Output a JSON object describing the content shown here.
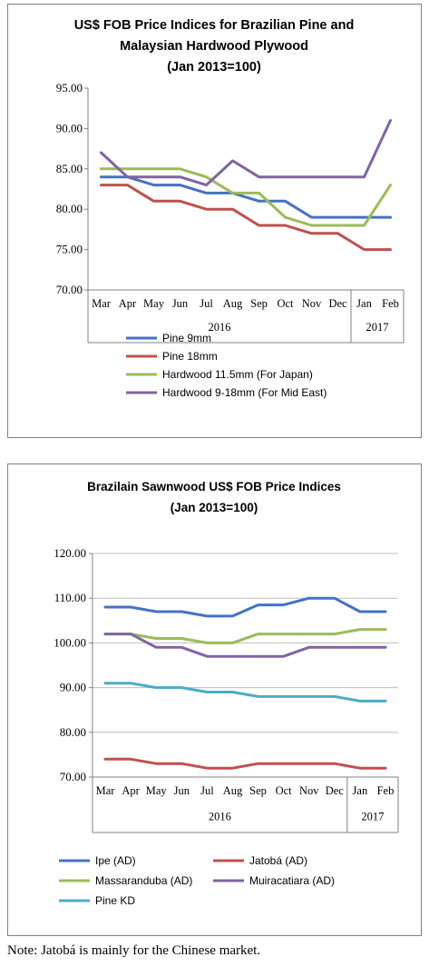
{
  "colors": {
    "blue": "#4472c4",
    "red": "#c0504d",
    "green": "#9bbb59",
    "purple": "#8064a2",
    "teal": "#4bacc6"
  },
  "chart_data": [
    {
      "type": "line",
      "title": [
        "US$ FOB Price Indices for Brazilian Pine and",
        "Malaysian Hardwood Plywood",
        "(Jan 2013=100)"
      ],
      "categories": [
        "Mar",
        "Apr",
        "May",
        "Jun",
        "Jul",
        "Aug",
        "Sep",
        "Oct",
        "Nov",
        "Dec",
        "Jan",
        "Feb"
      ],
      "year_groups": [
        {
          "label": "2016",
          "from": 0,
          "to": 9
        },
        {
          "label": "2017",
          "from": 10,
          "to": 11
        }
      ],
      "ylim": [
        70,
        95
      ],
      "yticks": [
        "70.00",
        "75.00",
        "80.00",
        "85.00",
        "90.00",
        "95.00"
      ],
      "grid": false,
      "legend": "bottom",
      "series": [
        {
          "name": "Pine 9mm",
          "color": "#4472c4",
          "values": [
            84,
            84,
            83,
            83,
            82,
            82,
            81,
            81,
            79,
            79,
            79,
            79
          ]
        },
        {
          "name": "Pine 18mm",
          "color": "#c0504d",
          "values": [
            83,
            83,
            81,
            81,
            80,
            80,
            78,
            78,
            77,
            77,
            75,
            75
          ]
        },
        {
          "name": "Hardwood 11.5mm (For Japan)",
          "color": "#9bbb59",
          "values": [
            85,
            85,
            85,
            85,
            84,
            82,
            82,
            79,
            78,
            78,
            78,
            83
          ]
        },
        {
          "name": "Hardwood 9-18mm (For Mid East)",
          "color": "#8064a2",
          "values": [
            87,
            84,
            84,
            84,
            83,
            86,
            84,
            84,
            84,
            84,
            84,
            91
          ]
        }
      ]
    },
    {
      "type": "line",
      "title": [
        "Brazilain Sawnwood US$ FOB Price Indices",
        "(Jan 2013=100)"
      ],
      "categories": [
        "Mar",
        "Apr",
        "May",
        "Jun",
        "Jul",
        "Aug",
        "Sep",
        "Oct",
        "Nov",
        "Dec",
        "Jan",
        "Feb"
      ],
      "year_groups": [
        {
          "label": "2016",
          "from": 0,
          "to": 9
        },
        {
          "label": "2017",
          "from": 10,
          "to": 11
        }
      ],
      "ylim": [
        70,
        120
      ],
      "yticks": [
        "70.00",
        "80.00",
        "90.00",
        "100.00",
        "110.00",
        "120.00"
      ],
      "grid": true,
      "legend": "bottom",
      "series": [
        {
          "name": "Ipe (AD)",
          "color": "#4472c4",
          "values": [
            108,
            108,
            107,
            107,
            106,
            106,
            108.5,
            108.5,
            110,
            110,
            107,
            107
          ]
        },
        {
          "name": "Jatobá (AD)",
          "color": "#c0504d",
          "values": [
            74,
            74,
            73,
            73,
            72,
            72,
            73,
            73,
            73,
            73,
            72,
            72
          ]
        },
        {
          "name": "Massaranduba (AD)",
          "color": "#9bbb59",
          "values": [
            102,
            102,
            101,
            101,
            100,
            100,
            102,
            102,
            102,
            102,
            103,
            103
          ]
        },
        {
          "name": "Muiracatiara (AD)",
          "color": "#8064a2",
          "values": [
            102,
            102,
            99,
            99,
            97,
            97,
            97,
            97,
            99,
            99,
            99,
            99
          ]
        },
        {
          "name": "Pine KD",
          "color": "#4bacc6",
          "values": [
            91,
            91,
            90,
            90,
            89,
            89,
            88,
            88,
            88,
            88,
            87,
            87
          ]
        }
      ]
    }
  ],
  "note": "Note: Jatobá is mainly for the Chinese market."
}
